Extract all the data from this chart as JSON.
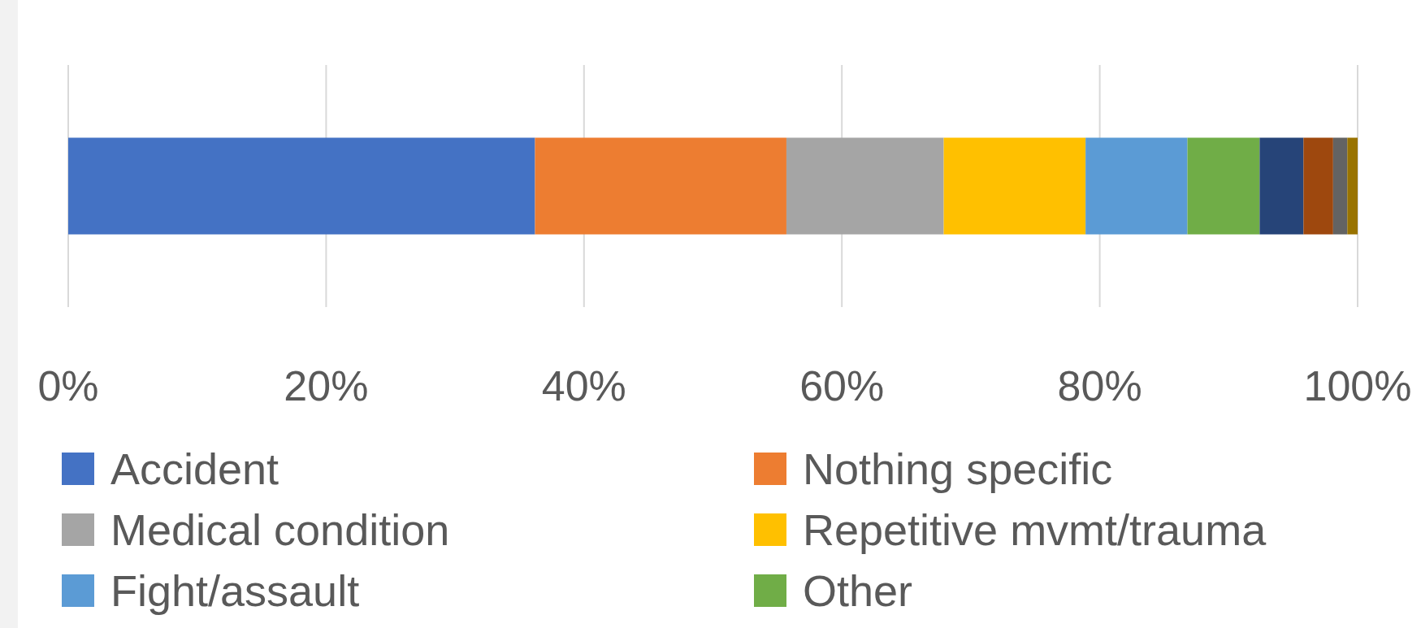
{
  "chart_data": {
    "type": "bar",
    "orientation": "horizontal",
    "stacked": true,
    "categories": [
      null
    ],
    "xlim": [
      0,
      100
    ],
    "xticks": [
      {
        "value": 0,
        "label": "0%"
      },
      {
        "value": 20,
        "label": "20%"
      },
      {
        "value": 40,
        "label": "40%"
      },
      {
        "value": 60,
        "label": "60%"
      },
      {
        "value": 80,
        "label": "80%"
      },
      {
        "value": 100,
        "label": "100%"
      }
    ],
    "grid": "x",
    "legend": "bottom",
    "series": [
      {
        "name": "Accident",
        "color": "#4472c4",
        "values": [
          36.2
        ]
      },
      {
        "name": "Nothing specific",
        "color": "#ed7d31",
        "values": [
          19.5
        ]
      },
      {
        "name": "Medical condition",
        "color": "#a5a5a5",
        "values": [
          12.2
        ]
      },
      {
        "name": "Repetitive mvmt/trauma",
        "color": "#ffc000",
        "values": [
          11.0
        ]
      },
      {
        "name": "Fight/assault",
        "color": "#5b9bd5",
        "values": [
          7.9
        ]
      },
      {
        "name": "Other",
        "color": "#70ad47",
        "values": [
          5.6
        ]
      },
      {
        "color": "#264478",
        "values": [
          3.4
        ]
      },
      {
        "color": "#9e480e",
        "values": [
          2.3
        ]
      },
      {
        "color": "#636363",
        "values": [
          1.1
        ]
      },
      {
        "color": "#997300",
        "values": [
          0.8
        ]
      }
    ]
  }
}
